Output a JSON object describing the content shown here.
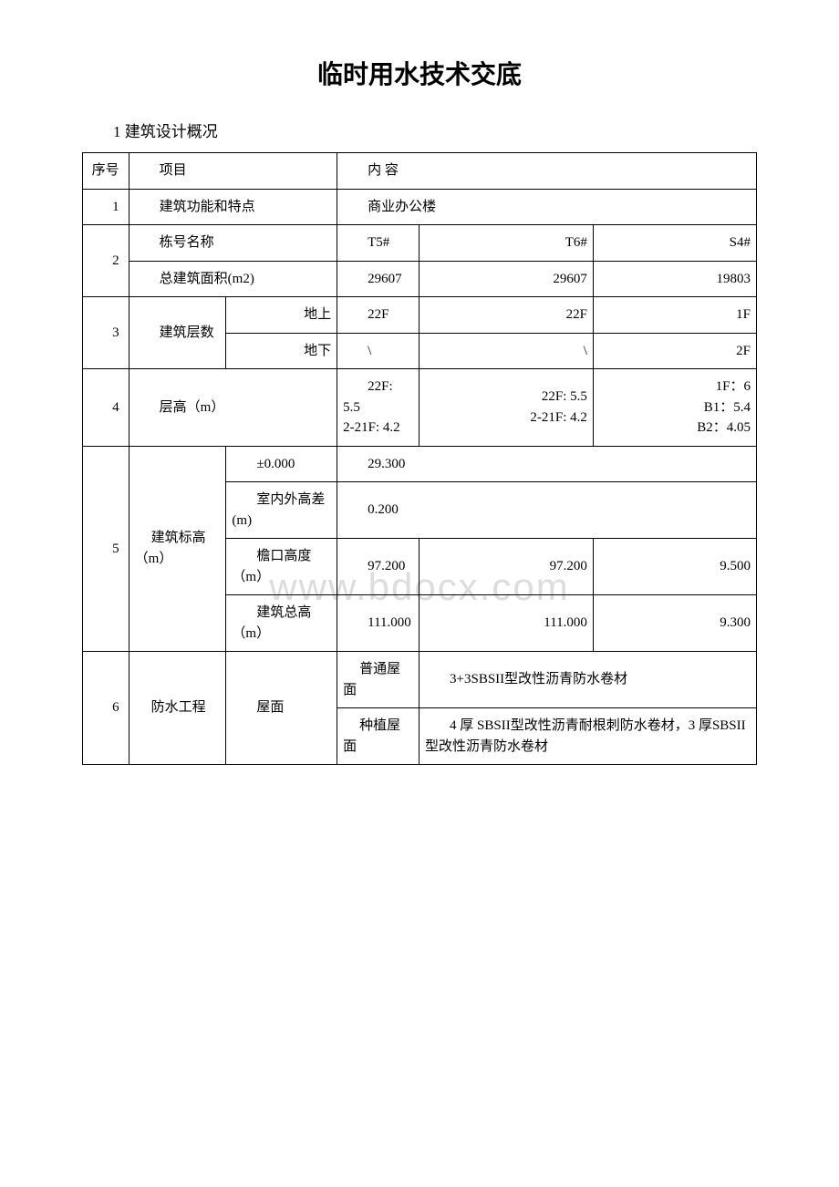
{
  "document": {
    "title": "临时用水技术交底",
    "section_header": "1 建筑设计概况",
    "watermark": "www.bdocx.com"
  },
  "headers": {
    "seq": "序号",
    "item": "项目",
    "content": "内 容"
  },
  "rows": {
    "r1": {
      "idx": "1",
      "item": "建筑功能和特点",
      "content": "商业办公楼"
    },
    "r2": {
      "idx": "2",
      "item_a": "栋号名称",
      "item_b": "总建筑面积(m2)",
      "v1a": "T5#",
      "v2a": "T6#",
      "v3a": "S4#",
      "v1b": "29607",
      "v2b": "29607",
      "v3b": "19803"
    },
    "r3": {
      "idx": "3",
      "item": "建筑层数",
      "sub_a": "地上",
      "sub_b": "地下",
      "v1a": "22F",
      "v2a": "22F",
      "v3a": "1F",
      "v1b": "\\",
      "v2b": "\\",
      "v3b": "2F"
    },
    "r4": {
      "idx": "4",
      "item": "层高（m）",
      "v1": "22F: 5.5\n2-21F: 4.2",
      "v2": "22F: 5.5\n2-21F: 4.2",
      "v3": "1F：6\nB1：5.4\nB2：4.05"
    },
    "r5": {
      "idx": "5",
      "item": "建筑标高（m）",
      "sub_a": "±0.000",
      "sub_b": "室内外高差(m)",
      "sub_c": "檐口高度（m）",
      "sub_d": "建筑总高（m）",
      "va": "29.300",
      "vb": "0.200",
      "vc1": "97.200",
      "vc2": "97.200",
      "vc3": "9.500",
      "vd1": "111.000",
      "vd2": "111.000",
      "vd3": "9.300"
    },
    "r6": {
      "idx": "6",
      "item": "防水工程",
      "sub": "屋面",
      "sub_a": "普通屋面",
      "sub_b": "种植屋面",
      "va": "3+3SBSII型改性沥青防水卷材",
      "vb": "4 厚 SBSII型改性沥青耐根刺防水卷材，3 厚SBSII型改性沥青防水卷材"
    }
  },
  "style": {
    "background": "#ffffff",
    "border_color": "#000000",
    "watermark_color": "#dddddd",
    "title_fontsize": 28,
    "body_fontsize": 15
  }
}
